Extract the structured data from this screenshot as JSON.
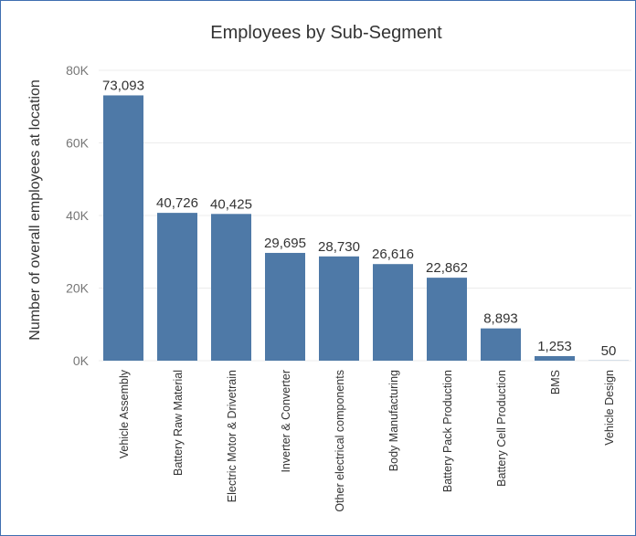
{
  "chart_data": {
    "type": "bar",
    "title": "Employees by Sub-Segment",
    "xlabel": "",
    "ylabel": "Number of overall employees at location",
    "ylim": [
      0,
      80000
    ],
    "yticks": [
      0,
      20000,
      40000,
      60000,
      80000
    ],
    "ytick_labels": [
      "0K",
      "20K",
      "40K",
      "60K",
      "80K"
    ],
    "grid": true,
    "bar_color": "#4e79a7",
    "categories": [
      "Vehicle Assembly",
      "Battery Raw Material",
      "Electric Motor & Drivetrain",
      "Inverter & Converter",
      "Other electrical components",
      "Body Manufacturing",
      "Battery Pack Production",
      "Battery Cell Production",
      "BMS",
      "Vehicle Design"
    ],
    "values": [
      73093,
      40726,
      40425,
      29695,
      28730,
      26616,
      22862,
      8893,
      1253,
      50
    ],
    "value_labels": [
      "73,093",
      "40,726",
      "40,425",
      "29,695",
      "28,730",
      "26,616",
      "22,862",
      "8,893",
      "1,253",
      "50"
    ]
  }
}
